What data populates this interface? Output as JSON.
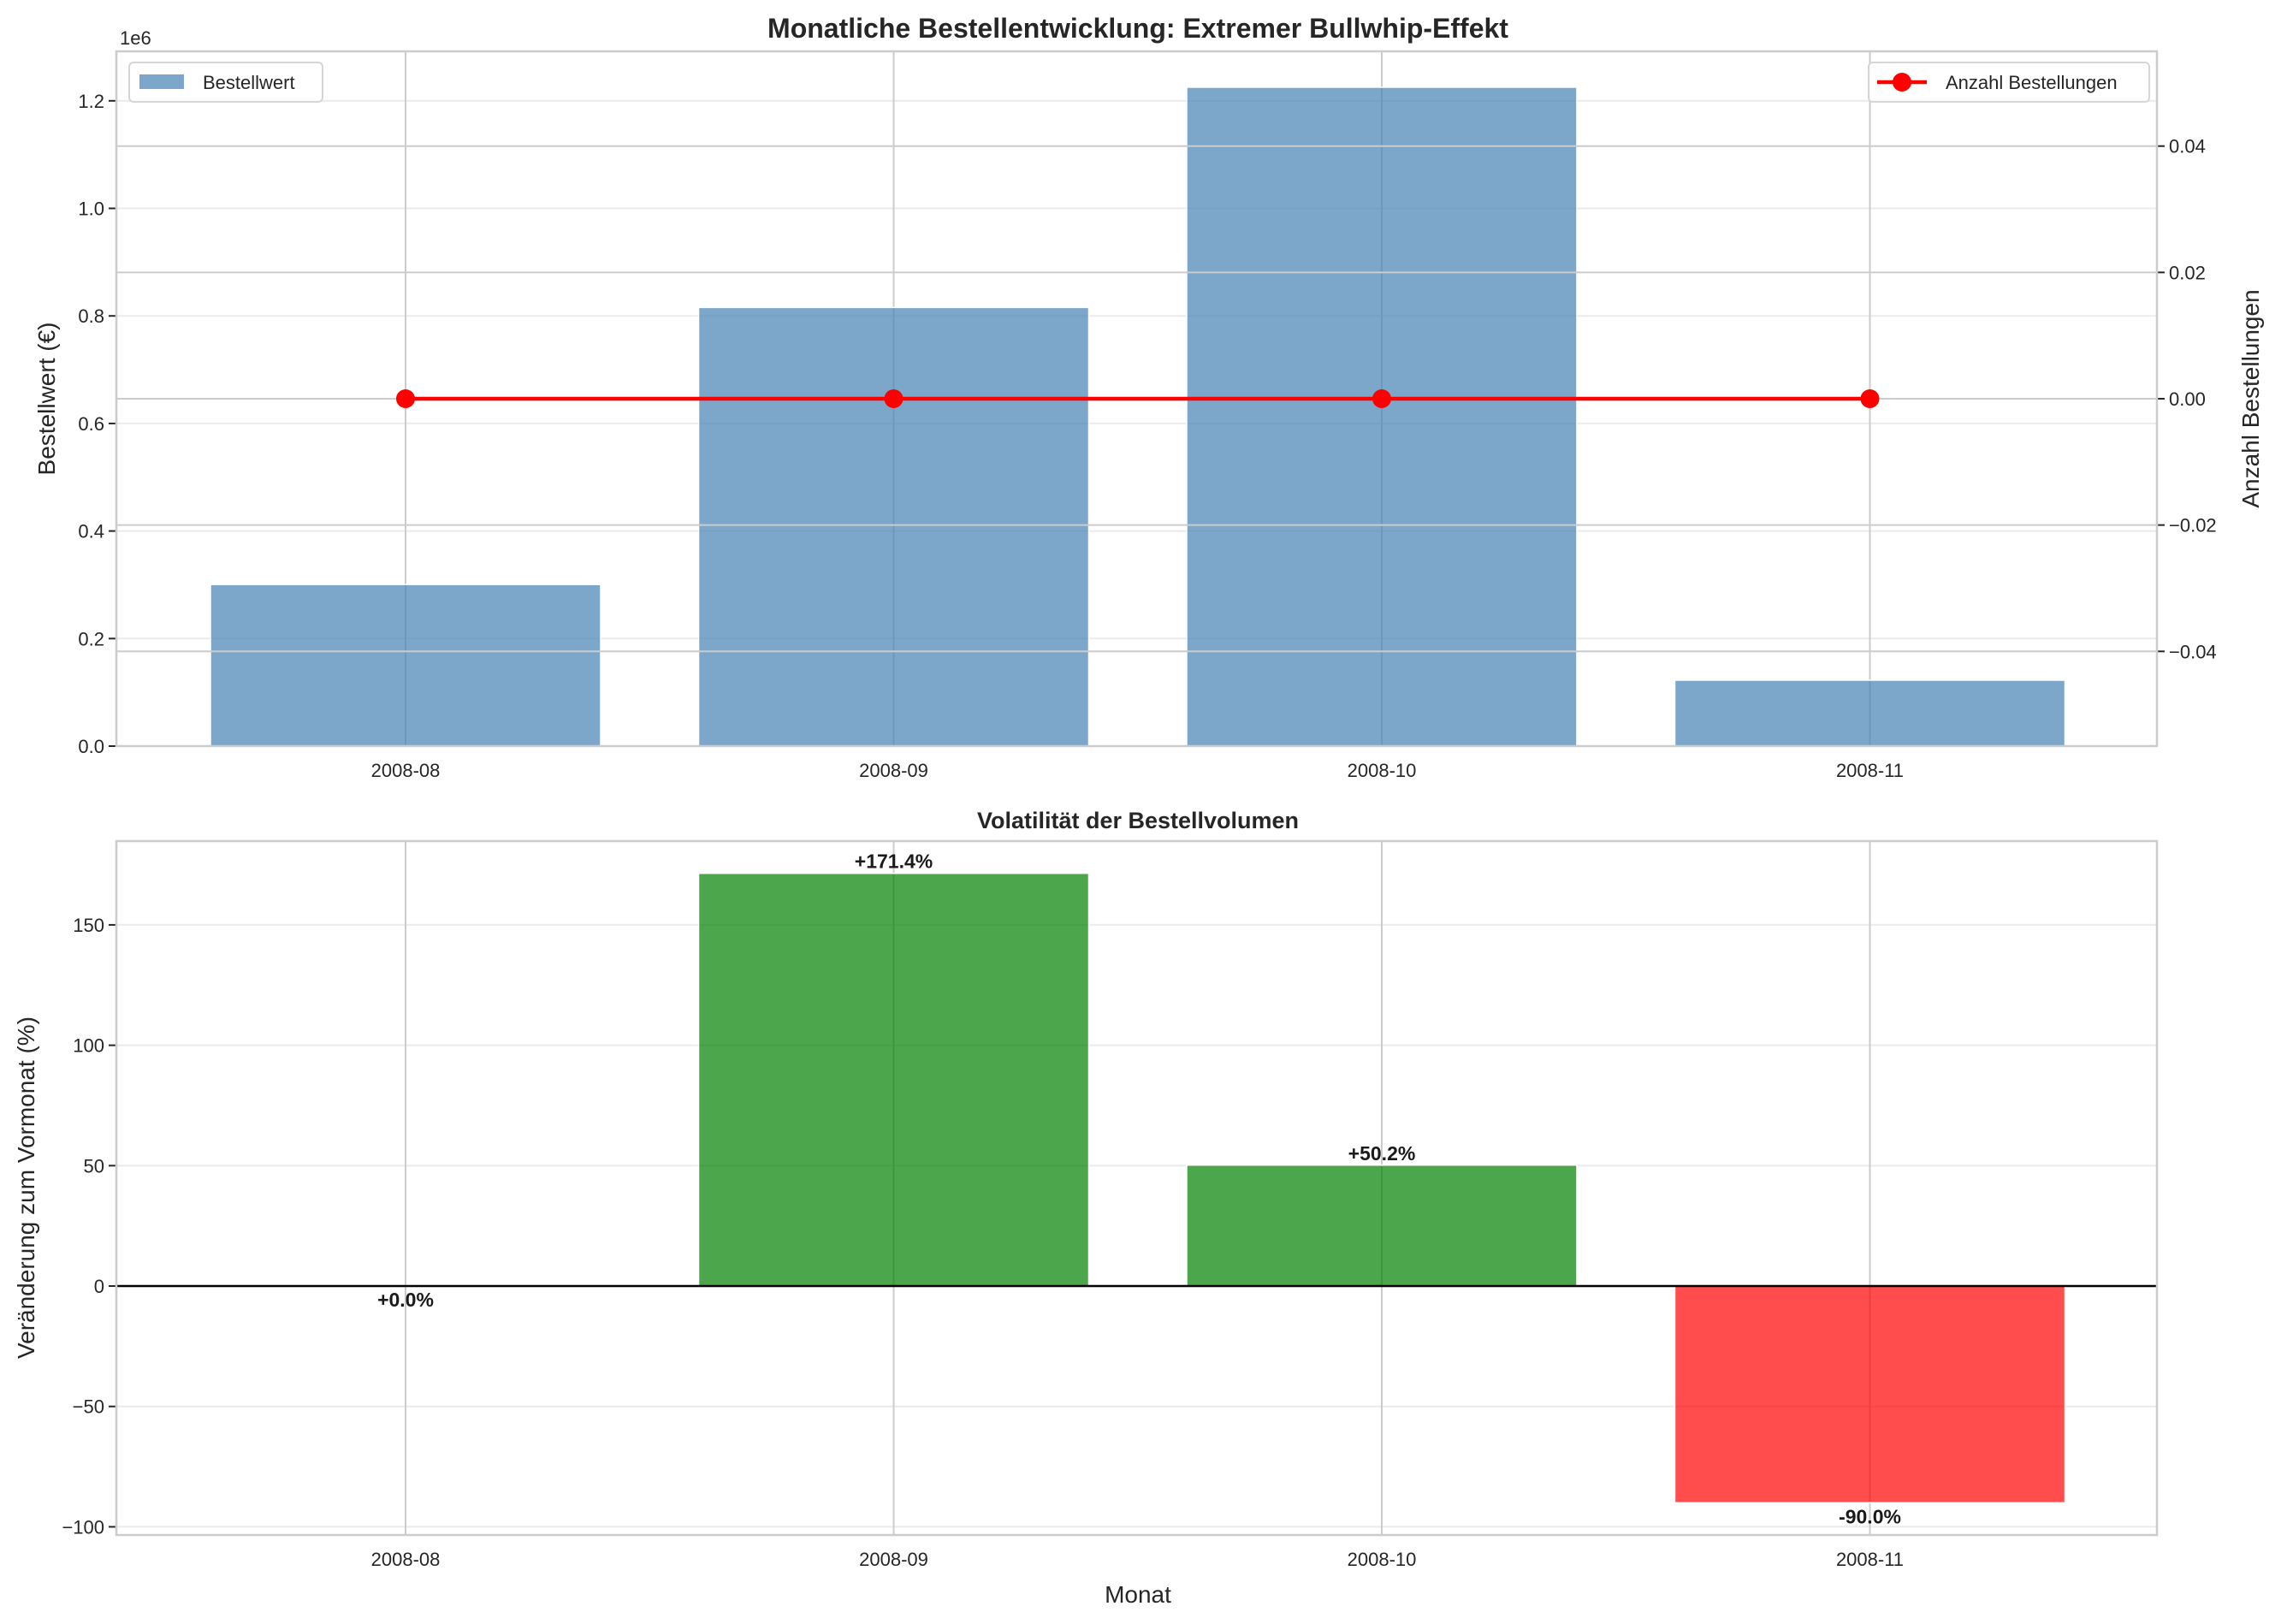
{
  "colors": {
    "bar_top": "#4682b4",
    "line": "#ff0000",
    "left_axis": "#3d7ab8",
    "right_axis": "#ff0000",
    "positive": "#008000",
    "negative": "#ff0000"
  },
  "chart_data": [
    {
      "type": "bar+line",
      "title": "Monatliche Bestellentwicklung: Extremer Bullwhip-Effekt",
      "categories": [
        "2008-08",
        "2008-09",
        "2008-10",
        "2008-11"
      ],
      "ylabel": "Bestellwert (€)",
      "ylabel_right": "Anzahl Bestellungen",
      "y_offset_label": "1e6",
      "ylim": [
        0,
        1292000
      ],
      "ylim_right": [
        -0.055,
        0.055
      ],
      "yticks": [
        0,
        200000,
        400000,
        600000,
        800000,
        1000000,
        1200000
      ],
      "ytick_labels": [
        "0.0",
        "0.2",
        "0.4",
        "0.6",
        "0.8",
        "1.0",
        "1.2"
      ],
      "yticks_right": [
        -0.04,
        -0.02,
        0,
        0.02,
        0.04
      ],
      "ytick_labels_right": [
        "−0.04",
        "−0.02",
        "0.00",
        "0.02",
        "0.04"
      ],
      "grid": true,
      "series": [
        {
          "name": "Bestellwert",
          "type": "bar",
          "axis": "left",
          "values": [
            300500,
            815700,
            1225200,
            122500
          ],
          "legend": "top-left"
        },
        {
          "name": "Anzahl Bestellungen",
          "type": "line",
          "axis": "right",
          "values": [
            0,
            0,
            0,
            0
          ],
          "legend": "top-right"
        }
      ]
    },
    {
      "type": "bar",
      "title": "Volatilität der Bestellvolumen",
      "categories": [
        "2008-08",
        "2008-09",
        "2008-10",
        "2008-11"
      ],
      "values": [
        0.0,
        171.4,
        50.2,
        -90.0
      ],
      "value_labels": [
        "+0.0%",
        "+171.4%",
        "+50.2%",
        "-90.0%"
      ],
      "xlabel": "Monat",
      "ylabel": "Veränderung zum Vormonat (%)",
      "ylim": [
        -103.4,
        184.8
      ],
      "yticks": [
        -100,
        -50,
        0,
        50,
        100,
        150
      ],
      "ytick_labels": [
        "−100",
        "−50",
        "0",
        "50",
        "100",
        "150"
      ],
      "grid": true
    }
  ]
}
